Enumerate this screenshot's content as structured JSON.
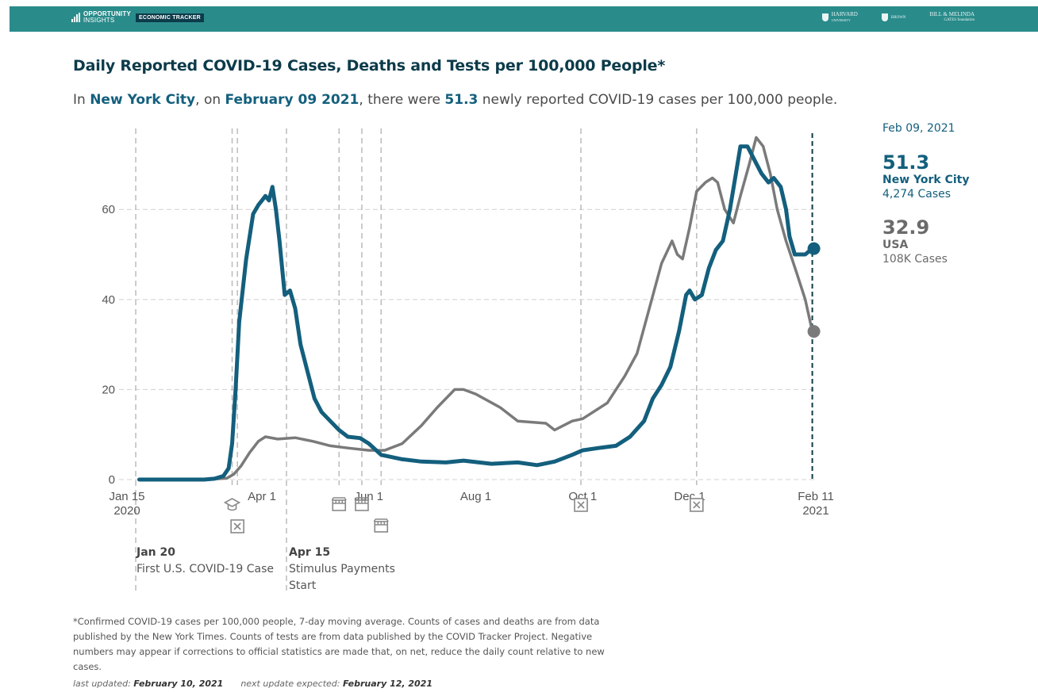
{
  "header": {
    "brand_line1": "OPPORTUNITY",
    "brand_line2": "INSIGHTS",
    "tracker_label": "ECONOMIC TRACKER",
    "partner1": "HARVARD",
    "partner1_sub": "UNIVERSITY",
    "partner2": "BROWN",
    "partner3_line1": "BILL & MELINDA",
    "partner3_line2": "GATES foundation"
  },
  "title": "Daily Reported COVID-19 Cases, Deaths and Tests per 100,000 People*",
  "subtitle": {
    "prefix": "In ",
    "place": "New York City",
    "mid1": ", on ",
    "date": "February 09 2021",
    "mid2": ", there were ",
    "value": "51.3",
    "suffix": " newly reported COVID-19 cases per 100,000 people."
  },
  "sidebar": {
    "date": "Feb 09, 2021",
    "primary_value": "51.3",
    "primary_name": "New York City",
    "primary_cases": "4,274 Cases",
    "secondary_value": "32.9",
    "secondary_name": "USA",
    "secondary_cases": "108K Cases"
  },
  "annotations": [
    {
      "date": "Jan 20",
      "text_lines": [
        "First U.S. COVID-19 Case"
      ]
    },
    {
      "date": "Apr 15",
      "text_lines": [
        "Stimulus Payments",
        "Start"
      ]
    }
  ],
  "footnote": "*Confirmed COVID-19 cases per 100,000 people, 7-day moving average. Counts of cases and deaths are from data published by the New York Times. Counts of tests are from data published by the COVID Tracker Project. Negative numbers may appear if corrections to official statistics are made that, on net, reduce the daily count relative to new cases.",
  "updated": {
    "label1": "last updated: ",
    "date1": "February 10, 2021",
    "label2": "next update expected: ",
    "date2": "February 12, 2021"
  },
  "chart_data": {
    "type": "line",
    "x_type": "date",
    "xlim": [
      "2020-01-15",
      "2021-02-11"
    ],
    "ylim": [
      0,
      78
    ],
    "y_ticks": [
      0,
      20,
      40,
      60
    ],
    "grid": true,
    "x_tick_labels": [
      {
        "date": "2020-01-15",
        "lines": [
          "Jan 15",
          "2020"
        ]
      },
      {
        "date": "2020-04-01",
        "lines": [
          "Apr 1"
        ]
      },
      {
        "date": "2020-06-01",
        "lines": [
          "Jun 1"
        ]
      },
      {
        "date": "2020-08-01",
        "lines": [
          "Aug 1"
        ]
      },
      {
        "date": "2020-10-01",
        "lines": [
          "Oct 1"
        ]
      },
      {
        "date": "2020-12-01",
        "lines": [
          "Dec 1"
        ]
      },
      {
        "date": "2021-02-11",
        "lines": [
          "Feb 11",
          "2021"
        ]
      }
    ],
    "event_lines": [
      {
        "date": "2020-01-20",
        "icon": "none",
        "tall": true
      },
      {
        "date": "2020-03-15",
        "icon": "school-icon"
      },
      {
        "date": "2020-03-18",
        "icon": "closed-box-icon"
      },
      {
        "date": "2020-04-15",
        "icon": "none",
        "tall": true
      },
      {
        "date": "2020-05-15",
        "icon": "store-icon"
      },
      {
        "date": "2020-05-28",
        "icon": "store-icon"
      },
      {
        "date": "2020-06-08",
        "icon": "store-icon"
      },
      {
        "date": "2020-09-30",
        "icon": "closed-box-icon"
      },
      {
        "date": "2020-12-05",
        "icon": "closed-box-icon"
      }
    ],
    "current_date": "2021-02-09",
    "series": [
      {
        "name": "New York City",
        "color": "#135f7d",
        "points": [
          [
            "2020-01-22",
            0
          ],
          [
            "2020-02-28",
            0
          ],
          [
            "2020-03-05",
            0.2
          ],
          [
            "2020-03-10",
            0.8
          ],
          [
            "2020-03-13",
            2.5
          ],
          [
            "2020-03-15",
            8
          ],
          [
            "2020-03-17",
            20
          ],
          [
            "2020-03-19",
            35
          ],
          [
            "2020-03-21",
            42
          ],
          [
            "2020-03-23",
            49
          ],
          [
            "2020-03-25",
            54
          ],
          [
            "2020-03-27",
            59
          ],
          [
            "2020-03-30",
            61
          ],
          [
            "2020-04-01",
            62
          ],
          [
            "2020-04-03",
            63
          ],
          [
            "2020-04-05",
            62
          ],
          [
            "2020-04-07",
            65
          ],
          [
            "2020-04-09",
            60
          ],
          [
            "2020-04-11",
            53
          ],
          [
            "2020-04-13",
            45
          ],
          [
            "2020-04-14",
            41
          ],
          [
            "2020-04-17",
            42
          ],
          [
            "2020-04-20",
            38
          ],
          [
            "2020-04-23",
            30
          ],
          [
            "2020-04-27",
            24
          ],
          [
            "2020-05-01",
            18
          ],
          [
            "2020-05-05",
            15
          ],
          [
            "2020-05-10",
            13
          ],
          [
            "2020-05-15",
            11
          ],
          [
            "2020-05-20",
            9.5
          ],
          [
            "2020-05-27",
            9.2
          ],
          [
            "2020-06-01",
            8
          ],
          [
            "2020-06-08",
            5.5
          ],
          [
            "2020-06-20",
            4.5
          ],
          [
            "2020-07-01",
            4
          ],
          [
            "2020-07-15",
            3.8
          ],
          [
            "2020-07-25",
            4.2
          ],
          [
            "2020-08-01",
            3.9
          ],
          [
            "2020-08-10",
            3.5
          ],
          [
            "2020-08-25",
            3.8
          ],
          [
            "2020-09-05",
            3.2
          ],
          [
            "2020-09-15",
            4
          ],
          [
            "2020-09-25",
            5.5
          ],
          [
            "2020-10-01",
            6.5
          ],
          [
            "2020-10-10",
            7
          ],
          [
            "2020-10-20",
            7.5
          ],
          [
            "2020-10-28",
            9.5
          ],
          [
            "2020-11-05",
            13
          ],
          [
            "2020-11-10",
            18
          ],
          [
            "2020-11-15",
            21
          ],
          [
            "2020-11-20",
            25
          ],
          [
            "2020-11-25",
            33
          ],
          [
            "2020-11-29",
            41
          ],
          [
            "2020-12-01",
            42
          ],
          [
            "2020-12-04",
            40
          ],
          [
            "2020-12-08",
            41
          ],
          [
            "2020-12-12",
            47
          ],
          [
            "2020-12-16",
            51
          ],
          [
            "2020-12-20",
            53
          ],
          [
            "2020-12-24",
            60
          ],
          [
            "2020-12-27",
            67
          ],
          [
            "2020-12-30",
            74
          ],
          [
            "2021-01-03",
            74
          ],
          [
            "2021-01-07",
            71
          ],
          [
            "2021-01-11",
            68
          ],
          [
            "2021-01-15",
            66
          ],
          [
            "2021-01-18",
            67
          ],
          [
            "2021-01-22",
            65
          ],
          [
            "2021-01-25",
            60
          ],
          [
            "2021-01-27",
            54
          ],
          [
            "2021-01-30",
            50
          ],
          [
            "2021-02-05",
            50
          ],
          [
            "2021-02-09",
            51.3
          ]
        ]
      },
      {
        "name": "USA",
        "color": "#7a7a7a",
        "points": [
          [
            "2020-01-22",
            0
          ],
          [
            "2020-03-01",
            0
          ],
          [
            "2020-03-12",
            0.3
          ],
          [
            "2020-03-16",
            1.2
          ],
          [
            "2020-03-20",
            3
          ],
          [
            "2020-03-25",
            6
          ],
          [
            "2020-03-30",
            8.5
          ],
          [
            "2020-04-03",
            9.5
          ],
          [
            "2020-04-10",
            9
          ],
          [
            "2020-04-20",
            9.3
          ],
          [
            "2020-04-30",
            8.5
          ],
          [
            "2020-05-10",
            7.5
          ],
          [
            "2020-05-20",
            7
          ],
          [
            "2020-06-01",
            6.5
          ],
          [
            "2020-06-10",
            6.5
          ],
          [
            "2020-06-20",
            8
          ],
          [
            "2020-07-01",
            12
          ],
          [
            "2020-07-10",
            16
          ],
          [
            "2020-07-20",
            20
          ],
          [
            "2020-07-25",
            20
          ],
          [
            "2020-08-01",
            19
          ],
          [
            "2020-08-15",
            16
          ],
          [
            "2020-08-25",
            13
          ],
          [
            "2020-09-10",
            12.5
          ],
          [
            "2020-09-15",
            11
          ],
          [
            "2020-09-25",
            13
          ],
          [
            "2020-10-01",
            13.5
          ],
          [
            "2020-10-15",
            17
          ],
          [
            "2020-10-25",
            23
          ],
          [
            "2020-11-01",
            28
          ],
          [
            "2020-11-08",
            38
          ],
          [
            "2020-11-15",
            48
          ],
          [
            "2020-11-21",
            53
          ],
          [
            "2020-11-24",
            50
          ],
          [
            "2020-11-27",
            49
          ],
          [
            "2020-12-01",
            56
          ],
          [
            "2020-12-05",
            64
          ],
          [
            "2020-12-10",
            66
          ],
          [
            "2020-12-14",
            67
          ],
          [
            "2020-12-17",
            66
          ],
          [
            "2020-12-21",
            60
          ],
          [
            "2020-12-26",
            57
          ],
          [
            "2020-12-30",
            63
          ],
          [
            "2021-01-04",
            70
          ],
          [
            "2021-01-08",
            76
          ],
          [
            "2021-01-12",
            74
          ],
          [
            "2021-01-16",
            68
          ],
          [
            "2021-01-20",
            60
          ],
          [
            "2021-01-25",
            53
          ],
          [
            "2021-01-31",
            46
          ],
          [
            "2021-02-05",
            40
          ],
          [
            "2021-02-09",
            32.9
          ]
        ]
      }
    ]
  }
}
